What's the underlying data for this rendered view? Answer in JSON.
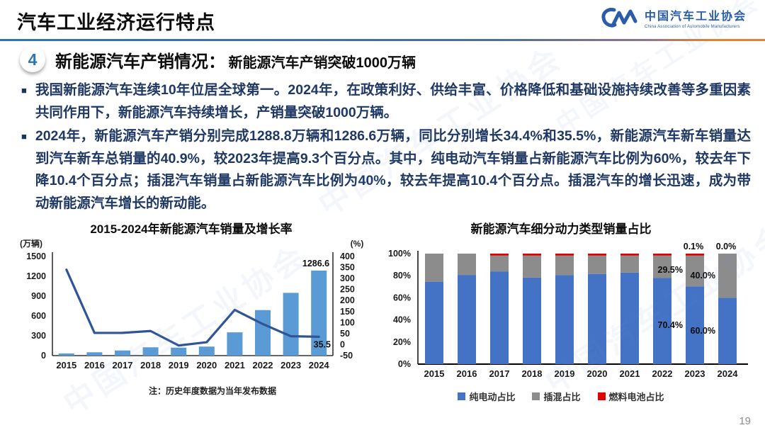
{
  "header": {
    "title": "汽车工业经济运行特点",
    "logo": {
      "org_cn": "中国汽车工业协会",
      "org_en": "China Association of Automobile Manufacturers"
    }
  },
  "section": {
    "number": "4",
    "heading": "新能源汽车产销情况：",
    "subheading": "新能源汽车产销突破1000万辆"
  },
  "bullets": [
    "我国新能源汽车连续10年位居全球第一。2024年，在政策利好、供给丰富、价格降低和基础设施持续改善等多重因素共同作用下，新能源汽车持续增长，产销量突破1000万辆。",
    "2024年，新能源汽车产销分别完成1288.8万辆和1286.6万辆，同比分别增长34.4%和35.5%，新能源汽车新车销量达到汽车新车总销量的40.9%，较2023年提高9.3个百分点。其中，纯电动汽车销量占新能源汽车比例为60%，较去年下降10.4个百分点；插混汽车销量占新能源汽车比例为40%，较去年提高10.4个百分点。插混汽车的增长迅速，成为带动新能源汽车增长的新动能。"
  ],
  "note": "注：历史年度数据为当年发布数据",
  "page_number": "19",
  "watermark": "中国汽车工业协会",
  "colors": {
    "accent_blue": "#2E74B5",
    "accent_orange": "#ED7D31",
    "body_text": "#1F3864",
    "bar_light_blue": "#5B9BD5",
    "line_dark_blue": "#2F5597",
    "bar_blue": "#4472C4",
    "bar_gray": "#8C8C8C",
    "bar_red": "#E00000"
  },
  "chart_data": [
    {
      "type": "bar",
      "subtype": "combo-bar-line",
      "title": "2015-2024年新能源汽车销量及增长率",
      "categories": [
        "2015",
        "2016",
        "2017",
        "2018",
        "2019",
        "2020",
        "2021",
        "2022",
        "2023",
        "2024"
      ],
      "series": [
        {
          "name": "销量",
          "type": "bar",
          "unit": "万辆",
          "color": "#5B9BD5",
          "values": [
            33.1,
            50.7,
            77.7,
            125.6,
            120.6,
            136.7,
            352.1,
            688.7,
            949.5,
            1286.6
          ]
        },
        {
          "name": "增长率",
          "type": "line",
          "unit": "%",
          "color": "#2F5597",
          "values": [
            340,
            53,
            53.3,
            61.7,
            -4.0,
            10.9,
            157.5,
            93.4,
            37.9,
            35.5
          ]
        }
      ],
      "left_axis": {
        "label": "(万辆)",
        "min": 0,
        "max": 1500,
        "step": 300
      },
      "right_axis": {
        "label": "(%)",
        "min": -50,
        "max": 400,
        "step": 50
      },
      "grid": false,
      "legend_position": "none",
      "data_labels": [
        {
          "category": "2024",
          "series": "销量",
          "text": "1286.6"
        },
        {
          "category": "2024",
          "series": "增长率",
          "text": "35.5"
        }
      ]
    },
    {
      "type": "bar",
      "subtype": "stacked-percent",
      "title": "新能源汽车细分动力类型销量占比",
      "categories": [
        "2015",
        "2016",
        "2017",
        "2018",
        "2019",
        "2020",
        "2021",
        "2022",
        "2023",
        "2024"
      ],
      "series": [
        {
          "name": "纯电动占比",
          "color": "#4472C4",
          "values": [
            74.6,
            80.7,
            83.9,
            78.3,
            80.6,
            81.6,
            82.8,
            77.9,
            70.4,
            60.0
          ]
        },
        {
          "name": "插混占比",
          "color": "#8C8C8C",
          "values": [
            25.4,
            19.3,
            16.0,
            21.6,
            19.3,
            18.3,
            17.1,
            22.0,
            29.5,
            40.0
          ]
        },
        {
          "name": "燃料电池占比",
          "color": "#E00000",
          "values": [
            0.0,
            0.0,
            0.1,
            0.1,
            0.1,
            0.1,
            0.1,
            0.1,
            0.1,
            0.0
          ]
        }
      ],
      "y_axis": {
        "min": 0,
        "max": 100,
        "step": 20,
        "format": "percent"
      },
      "grid": false,
      "legend_position": "bottom",
      "data_labels": [
        {
          "category": "2023",
          "series": "燃料电池占比",
          "text": "0.1%"
        },
        {
          "category": "2023",
          "series": "插混占比",
          "text": "29.5%"
        },
        {
          "category": "2023",
          "series": "纯电动占比",
          "text": "70.4%"
        },
        {
          "category": "2024",
          "series": "燃料电池占比",
          "text": "0.0%"
        },
        {
          "category": "2024",
          "series": "插混占比",
          "text": "40.0%"
        },
        {
          "category": "2024",
          "series": "纯电动占比",
          "text": "60.0%"
        }
      ]
    }
  ]
}
